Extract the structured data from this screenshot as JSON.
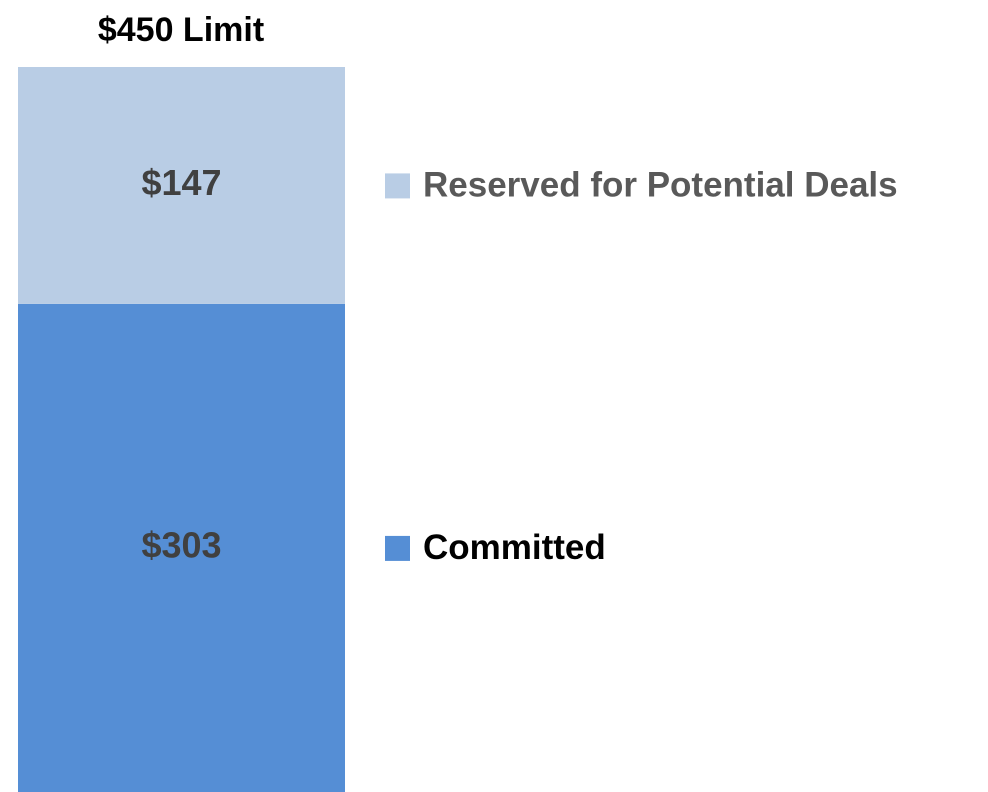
{
  "chart_data": {
    "type": "stacked_bar",
    "title": "$450 Limit",
    "series": [
      {
        "name": "Committed",
        "color": "#558ed5",
        "values": [
          303
        ],
        "value_labels": [
          "$303"
        ]
      },
      {
        "name": "Reserved for Potential Deals",
        "color": "#b9cde5",
        "values": [
          147
        ],
        "value_labels": [
          "$147"
        ]
      }
    ]
  }
}
